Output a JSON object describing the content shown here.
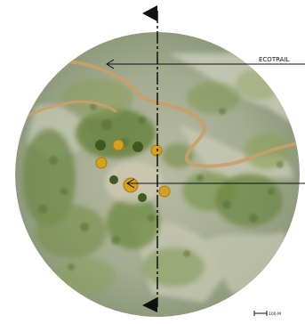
{
  "labels": {
    "trail_label": "ECOTRAIL",
    "scale_text": "100 M"
  },
  "icons": {
    "north_marker": "flag-icon",
    "south_marker": "flag-icon",
    "trail_pointer": "arrow-left-icon",
    "site_pointer": "arrow-left-icon"
  },
  "colors": {
    "terrain_base": "#a7ae93",
    "terrain_light": "#c6c8b4",
    "vegetation_dark": "#5d7a38",
    "vegetation_light": "#9cae5c",
    "trail": "#c9a06a",
    "autumn_trees": "#d6a020",
    "marker": "#111111"
  }
}
